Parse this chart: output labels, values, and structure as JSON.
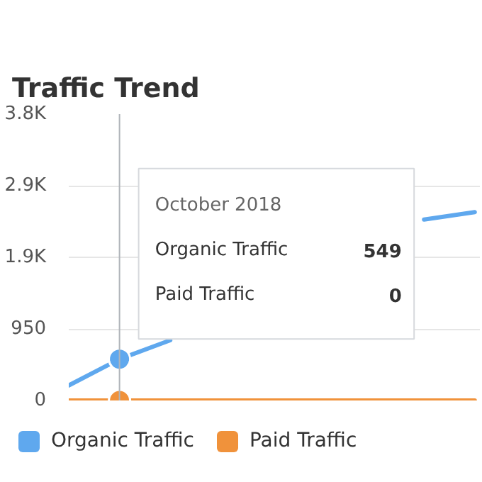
{
  "chart_data": {
    "type": "line",
    "title": "Traffic Trend",
    "categories": [
      null,
      null,
      null,
      null,
      null,
      null,
      null,
      null,
      null
    ],
    "series": [
      {
        "name": "Organic Traffic",
        "color": "#5fa8ee",
        "values": [
          200,
          549,
          800,
          null,
          null,
          null,
          null,
          2400,
          2500
        ]
      },
      {
        "name": "Paid Traffic",
        "color": "#f0923b",
        "values": [
          0,
          0,
          0,
          0,
          0,
          0,
          0,
          0,
          0
        ]
      }
    ],
    "ylim": [
      0,
      3800
    ],
    "yticks": [
      0,
      950,
      {
        "value": 1900,
        "label": "1.9K"
      },
      {
        "value": 2850,
        "label": "2.9K"
      },
      {
        "value": 3800,
        "label": "3.8K"
      }
    ],
    "tick_labels": "y",
    "grid": "y",
    "legend": "bottom",
    "annotations": [
      "October 2018",
      "Organic Traffic",
      "549",
      "Paid Traffic",
      "0"
    ]
  }
}
